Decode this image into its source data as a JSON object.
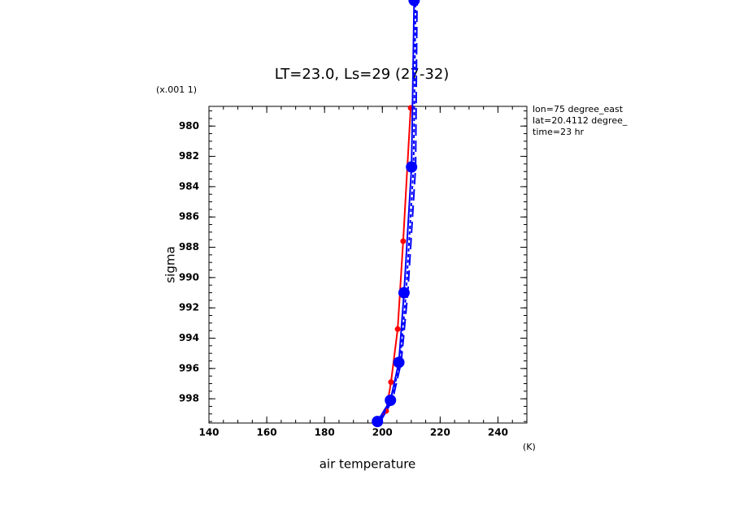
{
  "chart_data": {
    "type": "line",
    "title": "LT=23.0, Ls=29 (27-32)",
    "x_label": "air temperature",
    "y_label": "sigma",
    "x_unit": "(K)",
    "y_unit": "(x.001 1)",
    "annotations": [
      "lon=75 degree_east",
      "lat=20.4112 degree_",
      "time=23 hr"
    ],
    "xlim": [
      140,
      250
    ],
    "ylim": [
      999.6,
      978.7
    ],
    "xticks": [
      140,
      160,
      180,
      200,
      220,
      240
    ],
    "yticks": [
      980,
      982,
      984,
      986,
      988,
      990,
      992,
      994,
      996,
      998
    ],
    "series": [
      {
        "color": "#ff0000",
        "style": "solid",
        "markers": "small",
        "x": [
          198.0,
          201.3,
          203.0,
          205.3,
          207.2,
          209.8
        ],
        "values": [
          999.6,
          998.8,
          996.9,
          993.4,
          987.6,
          978.8
        ]
      },
      {
        "color": "#0000ff",
        "style": "solid",
        "markers": "large",
        "x": [
          198.3,
          202.8,
          205.7,
          207.5,
          210.1,
          211.0
        ],
        "values": [
          999.5,
          998.1,
          995.6,
          991.0,
          982.7,
          971.7
        ]
      },
      {
        "color": "#0000ff",
        "style": "dashed",
        "markers": "none",
        "x": [
          199.0,
          203.5,
          206.5,
          208.8,
          211.5,
          212.0
        ],
        "values": [
          999.6,
          998.1,
          995.6,
          991.0,
          982.7,
          971.7
        ]
      },
      {
        "color": "#0000ff",
        "style": "dotted",
        "markers": "none",
        "x": [
          198.6,
          203.1,
          206.1,
          208.2,
          210.8,
          211.5
        ],
        "values": [
          999.6,
          998.1,
          995.6,
          991.0,
          982.7,
          971.7
        ]
      }
    ]
  }
}
